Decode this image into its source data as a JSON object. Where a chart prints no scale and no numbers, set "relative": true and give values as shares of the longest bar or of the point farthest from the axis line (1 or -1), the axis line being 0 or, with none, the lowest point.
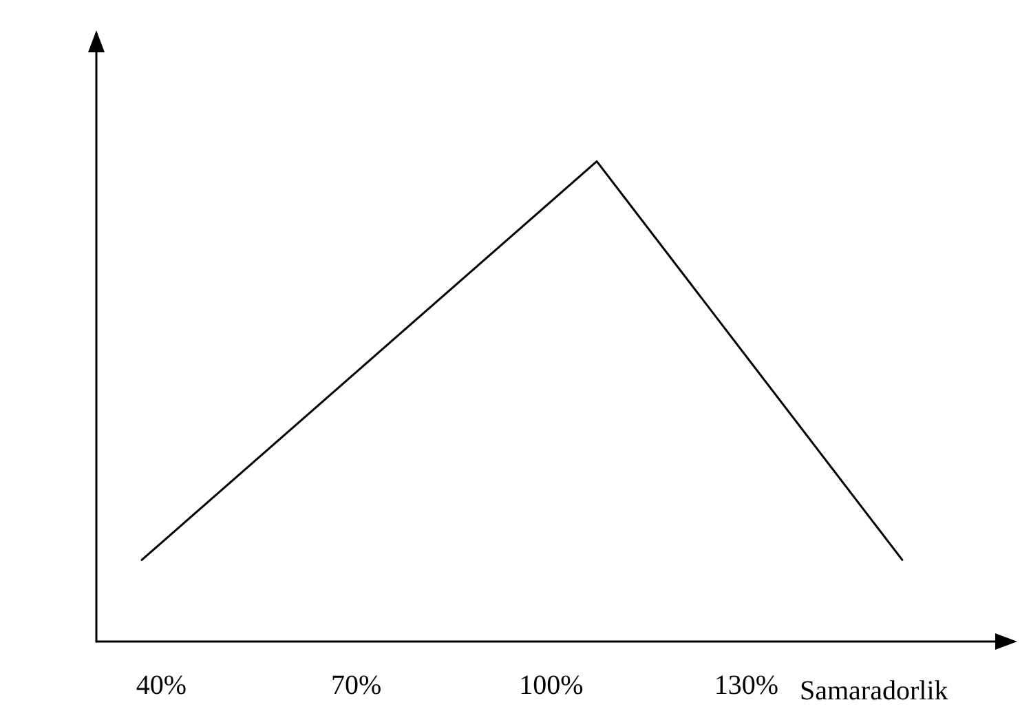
{
  "chart_data": {
    "type": "line",
    "relative": true,
    "xlabel": "Samaradorlik",
    "x": [
      37,
      107,
      154
    ],
    "series": [
      {
        "color": "#000000",
        "values": [
          0.17,
          1,
          0.17
        ]
      }
    ],
    "xlim": [
      30,
      170
    ],
    "xticks": [
      {
        "value": 40,
        "label": "40%"
      },
      {
        "value": 70,
        "label": "70%"
      },
      {
        "value": 100,
        "label": "100%"
      },
      {
        "value": 130,
        "label": "130%"
      }
    ],
    "tick_labels": "x",
    "grid": false,
    "marker": "none",
    "line_style": "solid"
  }
}
